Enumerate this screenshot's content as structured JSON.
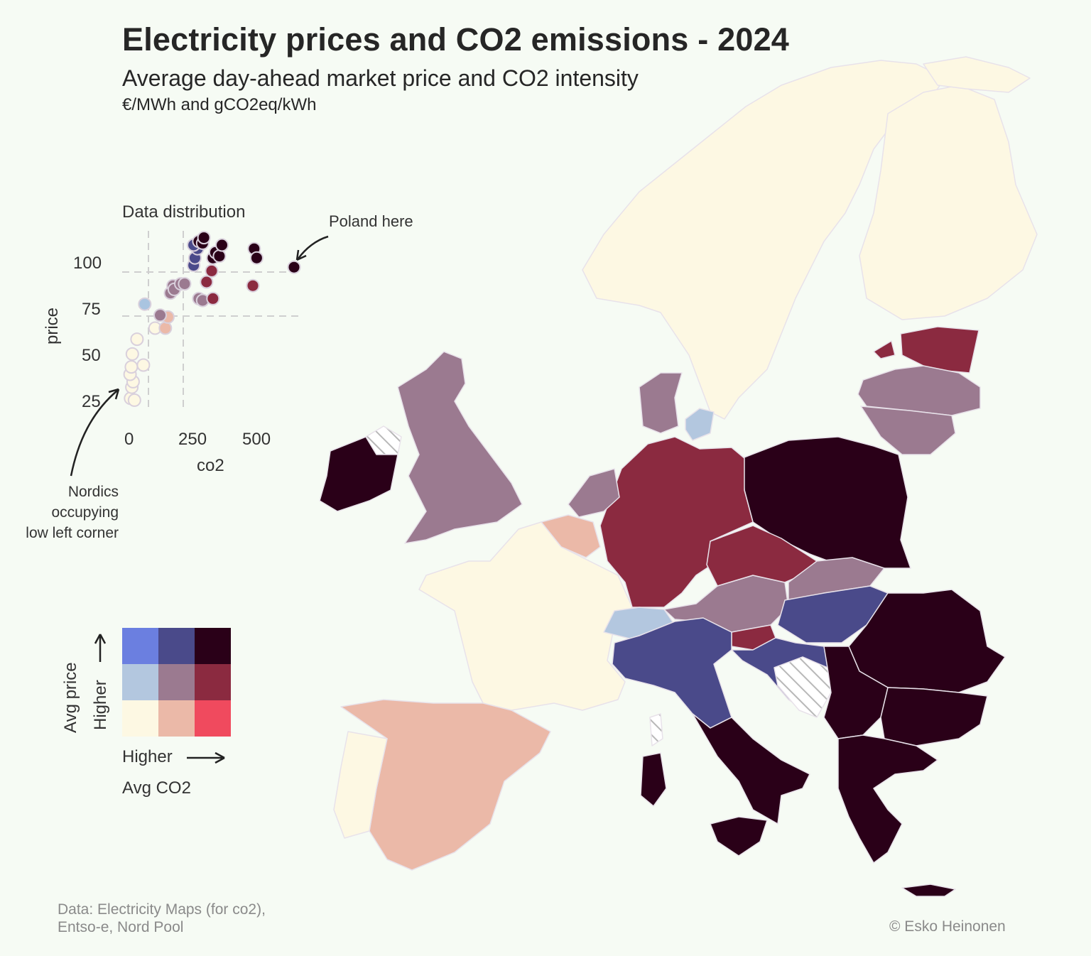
{
  "header": {
    "title": "Electricity prices and CO2 emissions - 2024",
    "subtitle": "Average day-ahead market price and CO2 intensity",
    "units": "€/MWh and gCO2eq/kWh"
  },
  "inset": {
    "title": "Data distribution",
    "x_label": "co2",
    "y_label": "price",
    "x_ticks": [
      "0",
      "250",
      "500"
    ],
    "y_ticks": [
      "25",
      "50",
      "75",
      "100"
    ],
    "annotation_poland": "Poland here",
    "annotation_nordics": [
      "Nordics",
      "occupying",
      "low left corner"
    ]
  },
  "chart_data": {
    "type": "scatter",
    "x": "co2",
    "y": "price",
    "xlim": [
      -30,
      650
    ],
    "ylim": [
      15,
      120
    ],
    "thresholds": {
      "co2": [
        100,
        300
      ],
      "price": [
        73,
        97
      ]
    },
    "points": [
      {
        "co2": 5,
        "price": 27,
        "color": "#fdf8e3"
      },
      {
        "co2": 20,
        "price": 26,
        "color": "#fdf8e3"
      },
      {
        "co2": 10,
        "price": 33,
        "color": "#fdf8e3"
      },
      {
        "co2": 15,
        "price": 36,
        "color": "#fdf8e3"
      },
      {
        "co2": 3,
        "price": 40,
        "color": "#fdf8e3"
      },
      {
        "co2": 8,
        "price": 44,
        "color": "#fdf8e3"
      },
      {
        "co2": 55,
        "price": 45,
        "color": "#fdf8e3"
      },
      {
        "co2": 12,
        "price": 51,
        "color": "#fdf8e3"
      },
      {
        "co2": 30,
        "price": 59,
        "color": "#fdf8e3"
      },
      {
        "co2": 100,
        "price": 65,
        "color": "#fdf8e3"
      },
      {
        "co2": 140,
        "price": 65,
        "color": "#ebb9a8"
      },
      {
        "co2": 150,
        "price": 71,
        "color": "#ebb9a8"
      },
      {
        "co2": 60,
        "price": 78,
        "color": "#a9c4e0"
      },
      {
        "co2": 120,
        "price": 72,
        "color": "#9b7a90"
      },
      {
        "co2": 160,
        "price": 84,
        "color": "#9b7a90"
      },
      {
        "co2": 170,
        "price": 88,
        "color": "#9b7a90"
      },
      {
        "co2": 175,
        "price": 86,
        "color": "#9b7a90"
      },
      {
        "co2": 200,
        "price": 89,
        "color": "#9b7a90"
      },
      {
        "co2": 215,
        "price": 89,
        "color": "#9b7a90"
      },
      {
        "co2": 270,
        "price": 81,
        "color": "#9b7a90"
      },
      {
        "co2": 285,
        "price": 80,
        "color": "#9b7a90"
      },
      {
        "co2": 300,
        "price": 90,
        "color": "#8b2a40"
      },
      {
        "co2": 325,
        "price": 81,
        "color": "#8b2a40"
      },
      {
        "co2": 320,
        "price": 96,
        "color": "#8b2a40"
      },
      {
        "co2": 480,
        "price": 88,
        "color": "#8b2a40"
      },
      {
        "co2": 250,
        "price": 99,
        "color": "#4a4a8a"
      },
      {
        "co2": 255,
        "price": 103,
        "color": "#4a4a8a"
      },
      {
        "co2": 265,
        "price": 108,
        "color": "#4a4a8a"
      },
      {
        "co2": 250,
        "price": 110,
        "color": "#4a4a8a"
      },
      {
        "co2": 270,
        "price": 112,
        "color": "#2a0018"
      },
      {
        "co2": 285,
        "price": 111,
        "color": "#2a0018"
      },
      {
        "co2": 290,
        "price": 114,
        "color": "#2a0018"
      },
      {
        "co2": 325,
        "price": 103,
        "color": "#2a0018"
      },
      {
        "co2": 335,
        "price": 106,
        "color": "#2a0018"
      },
      {
        "co2": 350,
        "price": 104,
        "color": "#2a0018"
      },
      {
        "co2": 360,
        "price": 110,
        "color": "#2a0018"
      },
      {
        "co2": 485,
        "price": 108,
        "color": "#2a0018"
      },
      {
        "co2": 495,
        "price": 103,
        "color": "#2a0018"
      },
      {
        "co2": 640,
        "price": 98,
        "color": "#2a0018"
      }
    ]
  },
  "legend": {
    "y_axis_label": "Avg price",
    "y_direction": "Higher",
    "x_direction": "Higher",
    "x_axis_label": "Avg CO2",
    "grid": [
      [
        "#6b7fe0",
        "#4a4a8a",
        "#2a0018"
      ],
      [
        "#b3c7df",
        "#9b7a90",
        "#8b2a40"
      ],
      [
        "#fdf8e3",
        "#ebb9a8",
        "#f04a5e"
      ]
    ]
  },
  "map": {
    "colors": {
      "low_price_low_co2": "#fdf8e3",
      "low_price_mid_co2": "#ebb9a8",
      "mid_price_low_co2": "#b3c7df",
      "mid_price_mid_co2": "#9b7a90",
      "mid_price_high_co2": "#8b2a40",
      "high_price_mid_co2": "#4a4a8a",
      "high_price_high_co2": "#2a0018",
      "no_data": "hatched"
    }
  },
  "footer": {
    "source_line1": "Data: Electricity Maps (for co2),",
    "source_line2": "Entso-e, Nord Pool",
    "credit": "© Esko Heinonen"
  }
}
